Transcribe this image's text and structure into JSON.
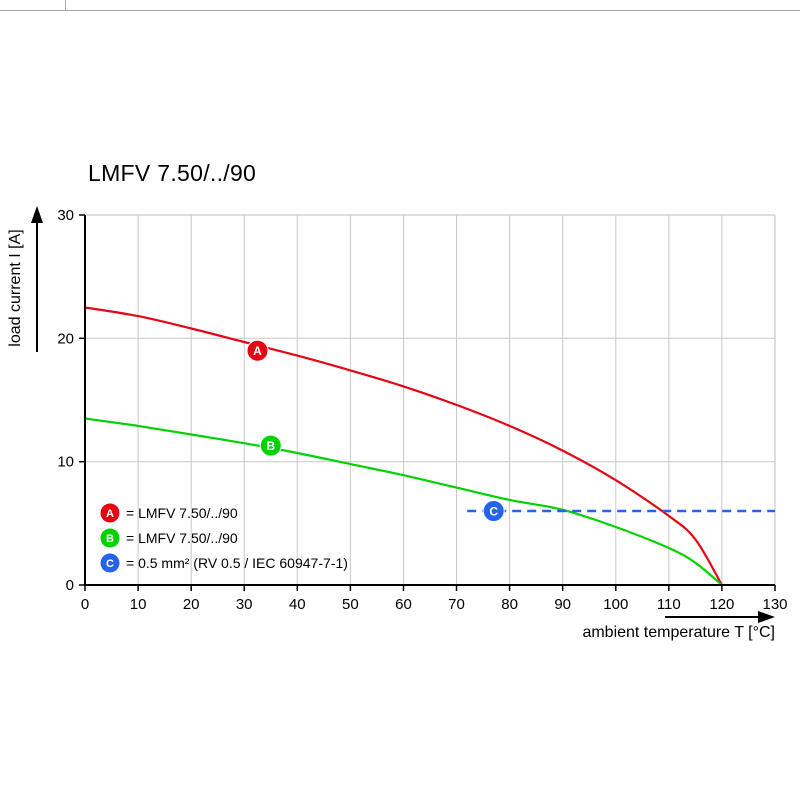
{
  "chart_data": {
    "type": "line",
    "title": "LMFV 7.50/../90",
    "xlabel": "ambient temperature T [°C]",
    "ylabel": "load current I [A]",
    "xlim": [
      0,
      130
    ],
    "ylim": [
      0,
      30
    ],
    "xticks": [
      0,
      10,
      20,
      30,
      40,
      50,
      60,
      70,
      80,
      90,
      100,
      110,
      120,
      130
    ],
    "yticks": [
      0,
      10,
      20,
      30
    ],
    "grid": true,
    "grid_color": "#c9c9c9",
    "axis_color": "#000000",
    "legend_position": "bottom-left-inside",
    "series": [
      {
        "key": "A",
        "label": "LMFV 7.50/../90",
        "color": "#e30613",
        "style": "solid",
        "points": [
          [
            0,
            22.5
          ],
          [
            10,
            21.8
          ],
          [
            20,
            20.8
          ],
          [
            30,
            19.7
          ],
          [
            40,
            18.6
          ],
          [
            50,
            17.4
          ],
          [
            60,
            16.1
          ],
          [
            70,
            14.6
          ],
          [
            80,
            12.9
          ],
          [
            90,
            10.9
          ],
          [
            100,
            8.5
          ],
          [
            110,
            5.6
          ],
          [
            115,
            3.7
          ],
          [
            120,
            0
          ]
        ],
        "marker": [
          32.5,
          19
        ]
      },
      {
        "key": "B",
        "label": "LMFV 7.50/../90",
        "color": "#00d100",
        "style": "solid",
        "points": [
          [
            0,
            13.5
          ],
          [
            10,
            12.9
          ],
          [
            20,
            12.2
          ],
          [
            30,
            11.5
          ],
          [
            40,
            10.7
          ],
          [
            50,
            9.8
          ],
          [
            60,
            8.9
          ],
          [
            70,
            7.9
          ],
          [
            80,
            6.9
          ],
          [
            90,
            6.1
          ],
          [
            100,
            4.7
          ],
          [
            110,
            3.0
          ],
          [
            115,
            1.8
          ],
          [
            120,
            0
          ]
        ],
        "marker": [
          35,
          11.3
        ]
      },
      {
        "key": "C",
        "label": "0.5 mm² (RV 0.5 / IEC 60947-7-1)",
        "color": "#2563eb",
        "style": "dashed",
        "points": [
          [
            72,
            6
          ],
          [
            130,
            6
          ]
        ],
        "marker": [
          77,
          6
        ]
      }
    ],
    "legend": [
      {
        "key": "A",
        "color": "#e30613",
        "text": "= LMFV 7.50/../90"
      },
      {
        "key": "B",
        "color": "#00d100",
        "text": "= LMFV 7.50/../90"
      },
      {
        "key": "C",
        "color": "#2563eb",
        "text": "= 0.5 mm² (RV 0.5 / IEC 60947-7-1)"
      }
    ]
  }
}
